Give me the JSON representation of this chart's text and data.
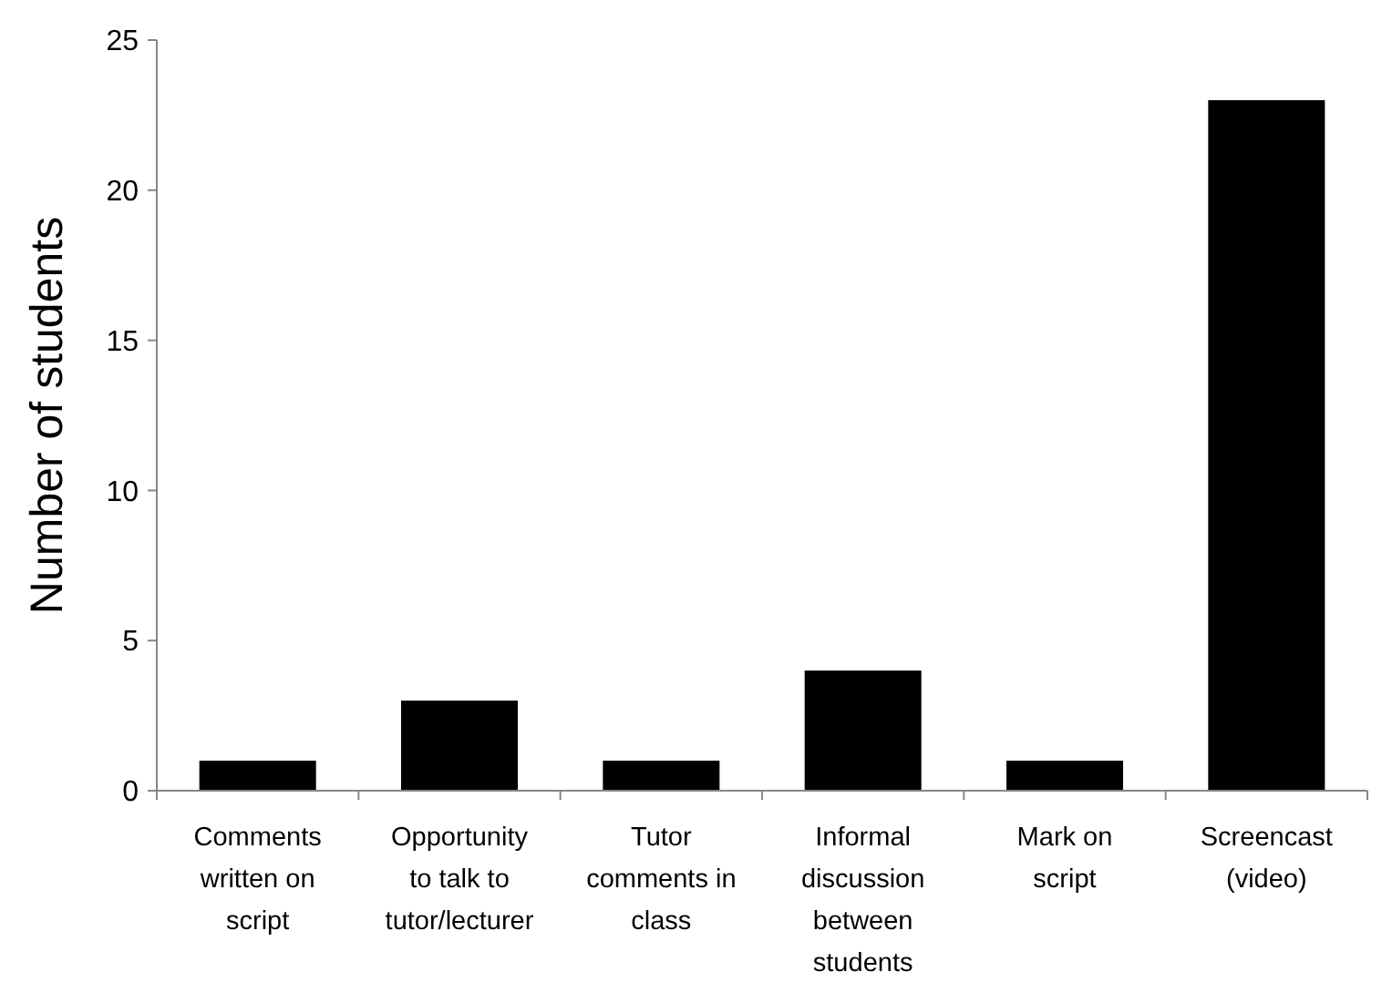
{
  "chart_data": {
    "type": "bar",
    "categories": [
      "Comments written on script",
      "Opportunity to talk to tutor/lecturer",
      "Tutor comments in class",
      "Informal discussion between students",
      "Mark on script",
      "Screencast (video)"
    ],
    "values": [
      1,
      3,
      1,
      4,
      1,
      23
    ],
    "color": "#000000",
    "ylabel": "Number of students",
    "ylim": [
      0,
      25
    ],
    "yticks": [
      0,
      5,
      10,
      15,
      20,
      25
    ],
    "grid": false
  }
}
